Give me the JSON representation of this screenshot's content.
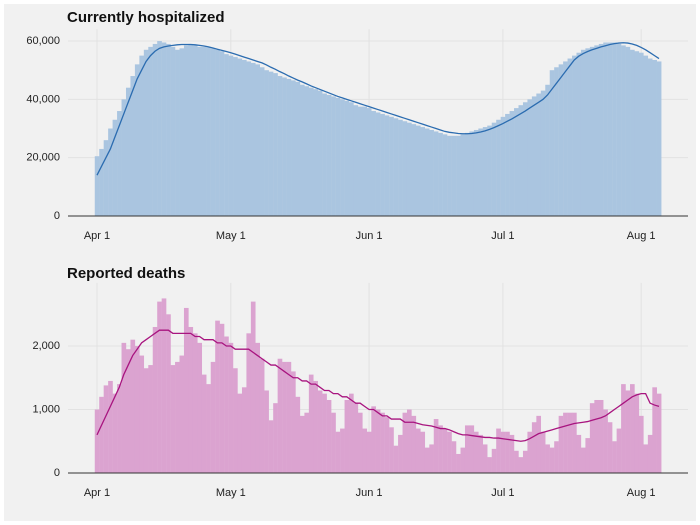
{
  "chart_data": [
    {
      "type": "bar",
      "title": "Currently hospitalized",
      "x": [
        0,
        1,
        2,
        3,
        4,
        5,
        6,
        7,
        8,
        9,
        10,
        11,
        12,
        13,
        14,
        15,
        16,
        17,
        18,
        19,
        20,
        21,
        22,
        23,
        24,
        25,
        26,
        27,
        28,
        29,
        30,
        31,
        32,
        33,
        34,
        35,
        36,
        37,
        38,
        39,
        40,
        41,
        42,
        43,
        44,
        45,
        46,
        47,
        48,
        49,
        50,
        51,
        52,
        53,
        54,
        55,
        56,
        57,
        58,
        59,
        60,
        61,
        62,
        63,
        64,
        65,
        66,
        67,
        68,
        69,
        70,
        71,
        72,
        73,
        74,
        75,
        76,
        77,
        78,
        79,
        80,
        81,
        82,
        83,
        84,
        85,
        86,
        87,
        88,
        89,
        90,
        91,
        92,
        93,
        94,
        95,
        96,
        97,
        98,
        99,
        100,
        101,
        102,
        103,
        104,
        105,
        106,
        107,
        108,
        109,
        110,
        111,
        112,
        113,
        114,
        115,
        116,
        117,
        118,
        119,
        120,
        121,
        122,
        123,
        124,
        125,
        126
      ],
      "series": [
        {
          "type": "bar",
          "color": "#aac5e0",
          "values": [
            20500,
            23000,
            26000,
            30000,
            33000,
            36000,
            40000,
            44000,
            48000,
            52000,
            55000,
            57000,
            58000,
            59000,
            60000,
            59500,
            59000,
            58000,
            57000,
            57500,
            58500,
            59000,
            58500,
            58000,
            58000,
            57800,
            57500,
            57000,
            56500,
            55500,
            55000,
            54500,
            54000,
            53500,
            53000,
            52500,
            52000,
            51000,
            50000,
            49500,
            49000,
            48000,
            47500,
            47000,
            46500,
            46000,
            45000,
            44500,
            44000,
            43500,
            43000,
            42000,
            41500,
            41000,
            40500,
            40000,
            39500,
            39000,
            38000,
            37500,
            37500,
            37000,
            36000,
            35500,
            35000,
            34500,
            34000,
            33500,
            33000,
            32500,
            32000,
            31500,
            31000,
            30500,
            30000,
            29500,
            29000,
            28500,
            28000,
            27500,
            27500,
            27500,
            28000,
            28500,
            29000,
            29500,
            30000,
            30500,
            31000,
            32000,
            33000,
            34000,
            35000,
            36000,
            37000,
            38000,
            39000,
            40000,
            41000,
            42000,
            43000,
            45000,
            50000,
            51000,
            52000,
            53000,
            54000,
            55000,
            56000,
            57000,
            57500,
            58000,
            58500,
            59000,
            59500,
            59500,
            59500,
            59000,
            58500,
            58000,
            57000,
            56500,
            56000,
            55000,
            54000,
            53500,
            53000
          ]
        },
        {
          "type": "line",
          "color": "#2b6cb0",
          "values": [
            14000,
            17000,
            20000,
            23000,
            27000,
            31000,
            35000,
            39000,
            43000,
            47000,
            50000,
            53000,
            55000,
            56500,
            57500,
            58000,
            58300,
            58500,
            58700,
            58800,
            58800,
            58800,
            58700,
            58500,
            58300,
            58000,
            57600,
            57200,
            56800,
            56400,
            56000,
            55500,
            55000,
            54500,
            54000,
            53500,
            53000,
            52500,
            51800,
            51000,
            50300,
            49500,
            48800,
            48000,
            47300,
            46600,
            46000,
            45300,
            44600,
            44000,
            43400,
            42800,
            42200,
            41600,
            41000,
            40500,
            40000,
            39500,
            39000,
            38500,
            38000,
            37500,
            37000,
            36500,
            36000,
            35500,
            35000,
            34500,
            34000,
            33500,
            33000,
            32500,
            32000,
            31500,
            31000,
            30500,
            30000,
            29500,
            29000,
            28700,
            28500,
            28300,
            28200,
            28200,
            28300,
            28500,
            28800,
            29200,
            29700,
            30300,
            31000,
            31700,
            32500,
            33300,
            34200,
            35100,
            36000,
            37000,
            38000,
            39000,
            40000,
            41500,
            43500,
            45500,
            47500,
            49500,
            51500,
            53500,
            54800,
            55700,
            56400,
            57000,
            57500,
            58000,
            58400,
            58800,
            59100,
            59300,
            59400,
            59300,
            59000,
            58500,
            57800,
            57000,
            56000,
            55000,
            54000
          ]
        }
      ],
      "xlim": [
        -6.5,
        132.5
      ],
      "xticks": [
        {
          "value": 0,
          "label": "Apr 1"
        },
        {
          "value": 30,
          "label": "May 1"
        },
        {
          "value": 61,
          "label": "Jun 1"
        },
        {
          "value": 91,
          "label": "Jul 1"
        },
        {
          "value": 122,
          "label": "Aug 1"
        }
      ],
      "ylim": [
        0,
        62000
      ],
      "yticks": [
        0,
        {
          "value": 20000,
          "label": "20,000"
        },
        {
          "value": 40000,
          "label": "40,000"
        },
        {
          "value": 60000,
          "label": "60,000"
        }
      ],
      "grid": true
    },
    {
      "type": "bar",
      "title": "Reported deaths",
      "x": [
        0,
        1,
        2,
        3,
        4,
        5,
        6,
        7,
        8,
        9,
        10,
        11,
        12,
        13,
        14,
        15,
        16,
        17,
        18,
        19,
        20,
        21,
        22,
        23,
        24,
        25,
        26,
        27,
        28,
        29,
        30,
        31,
        32,
        33,
        34,
        35,
        36,
        37,
        38,
        39,
        40,
        41,
        42,
        43,
        44,
        45,
        46,
        47,
        48,
        49,
        50,
        51,
        52,
        53,
        54,
        55,
        56,
        57,
        58,
        59,
        60,
        61,
        62,
        63,
        64,
        65,
        66,
        67,
        68,
        69,
        70,
        71,
        72,
        73,
        74,
        75,
        76,
        77,
        78,
        79,
        80,
        81,
        82,
        83,
        84,
        85,
        86,
        87,
        88,
        89,
        90,
        91,
        92,
        93,
        94,
        95,
        96,
        97,
        98,
        99,
        100,
        101,
        102,
        103,
        104,
        105,
        106,
        107,
        108,
        109,
        110,
        111,
        112,
        113,
        114,
        115,
        116,
        117,
        118,
        119,
        120,
        121,
        122,
        123,
        124,
        125,
        126
      ],
      "series": [
        {
          "type": "bar",
          "color": "#dba3d0",
          "values": [
            1000,
            1200,
            1380,
            1450,
            1250,
            1400,
            2050,
            1950,
            2100,
            2000,
            1850,
            1650,
            1700,
            2300,
            2700,
            2750,
            2500,
            1700,
            1750,
            1850,
            2600,
            2300,
            2200,
            2050,
            1550,
            1400,
            1750,
            2400,
            2350,
            2150,
            2050,
            1650,
            1250,
            1350,
            2200,
            2700,
            2050,
            1800,
            1300,
            830,
            1100,
            1800,
            1750,
            1750,
            1600,
            1200,
            900,
            950,
            1550,
            1450,
            1300,
            1250,
            1150,
            950,
            650,
            700,
            1150,
            1250,
            1100,
            950,
            700,
            650,
            1050,
            1000,
            950,
            880,
            720,
            430,
            600,
            950,
            1000,
            900,
            700,
            650,
            400,
            450,
            850,
            750,
            700,
            650,
            500,
            300,
            400,
            750,
            750,
            650,
            600,
            450,
            250,
            380,
            700,
            650,
            650,
            600,
            350,
            250,
            350,
            650,
            800,
            900,
            650,
            450,
            400,
            500,
            900,
            950,
            950,
            950,
            600,
            400,
            550,
            1100,
            1150,
            1150,
            1000,
            800,
            500,
            700,
            1400,
            1300,
            1400,
            1250,
            900,
            450,
            600,
            1350,
            1250
          ]
        },
        {
          "type": "line",
          "color": "#a8147f",
          "values": [
            600,
            750,
            900,
            1050,
            1200,
            1350,
            1550,
            1700,
            1850,
            1950,
            2050,
            2100,
            2150,
            2200,
            2250,
            2250,
            2250,
            2200,
            2200,
            2200,
            2200,
            2200,
            2150,
            2150,
            2100,
            2100,
            2100,
            2050,
            2050,
            2000,
            2000,
            1950,
            1950,
            1950,
            1950,
            1900,
            1850,
            1800,
            1750,
            1700,
            1700,
            1650,
            1600,
            1550,
            1500,
            1500,
            1450,
            1450,
            1400,
            1400,
            1350,
            1300,
            1300,
            1250,
            1250,
            1200,
            1200,
            1150,
            1100,
            1100,
            1050,
            1000,
            1000,
            950,
            900,
            900,
            850,
            850,
            850,
            800,
            800,
            800,
            780,
            760,
            750,
            740,
            720,
            700,
            700,
            680,
            650,
            620,
            600,
            600,
            590,
            580,
            570,
            560,
            560,
            550,
            550,
            540,
            530,
            520,
            510,
            500,
            510,
            540,
            580,
            620,
            640,
            660,
            680,
            700,
            720,
            740,
            760,
            780,
            790,
            800,
            810,
            830,
            850,
            870,
            900,
            950,
            1000,
            1050,
            1100,
            1150,
            1200,
            1230,
            1250,
            1250,
            1100,
            1070,
            1050
          ]
        }
      ],
      "xlim": [
        -6.5,
        132.5
      ],
      "xticks": [
        {
          "value": 0,
          "label": "Apr 1"
        },
        {
          "value": 30,
          "label": "May 1"
        },
        {
          "value": 61,
          "label": "Jun 1"
        },
        {
          "value": 91,
          "label": "Jul 1"
        },
        {
          "value": 122,
          "label": "Aug 1"
        }
      ],
      "ylim": [
        0,
        2900
      ],
      "yticks": [
        0,
        {
          "value": 1000,
          "label": "1,000"
        },
        {
          "value": 2000,
          "label": "2,000"
        }
      ],
      "grid": true
    }
  ]
}
